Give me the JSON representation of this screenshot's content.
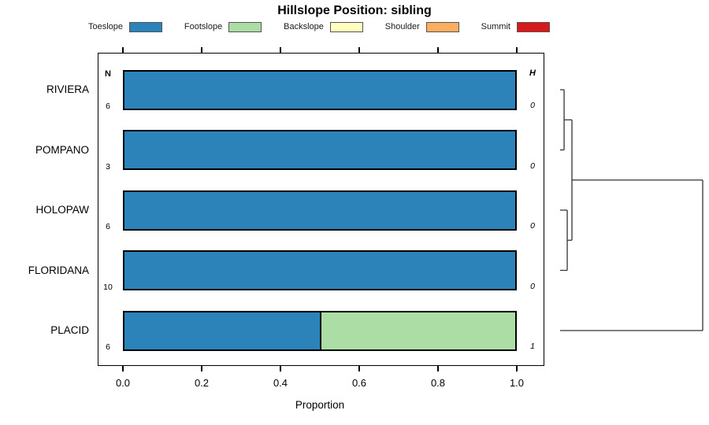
{
  "title": "Hillslope Position: sibling",
  "legend": {
    "entries": [
      {
        "label": "Toeslope",
        "color": "#2B83BA"
      },
      {
        "label": "Footslope",
        "color": "#ABDDA4"
      },
      {
        "label": "Backslope",
        "color": "#FFFFBF"
      },
      {
        "label": "Shoulder",
        "color": "#FDAE61"
      },
      {
        "label": "Summit",
        "color": "#D7191C"
      }
    ]
  },
  "columns": {
    "n_header": "N",
    "h_header": "H"
  },
  "x_axis": {
    "label": "Proportion",
    "tick_labels": [
      "0.0",
      "0.2",
      "0.4",
      "0.6",
      "0.8",
      "1.0"
    ],
    "min": 0.0,
    "max": 1.0
  },
  "chart_data": {
    "type": "bar",
    "subtype": "horizontal-stacked-proportion",
    "title": "Hillslope Position: sibling",
    "xlabel": "Proportion",
    "xlim": [
      0.0,
      1.0
    ],
    "xticks": [
      0.0,
      0.2,
      0.4,
      0.6,
      0.8,
      1.0
    ],
    "grid": false,
    "series": [
      "Toeslope",
      "Footslope",
      "Backslope",
      "Shoulder",
      "Summit"
    ],
    "categories": [
      "RIVIERA",
      "POMPANO",
      "HOLOPAW",
      "FLORIDANA",
      "PLACID"
    ],
    "rows": [
      {
        "name": "RIVIERA",
        "n": "6",
        "h": "0",
        "segments": [
          {
            "series": "Toeslope",
            "value": 1.0
          }
        ]
      },
      {
        "name": "POMPANO",
        "n": "3",
        "h": "0",
        "segments": [
          {
            "series": "Toeslope",
            "value": 1.0
          }
        ]
      },
      {
        "name": "HOLOPAW",
        "n": "6",
        "h": "0",
        "segments": [
          {
            "series": "Toeslope",
            "value": 1.0
          }
        ]
      },
      {
        "name": "FLORIDANA",
        "n": "10",
        "h": "0",
        "segments": [
          {
            "series": "Toeslope",
            "value": 1.0
          }
        ]
      },
      {
        "name": "PLACID",
        "n": "6",
        "h": "1",
        "segments": [
          {
            "series": "Toeslope",
            "value": 0.5
          },
          {
            "series": "Footslope",
            "value": 0.5
          }
        ]
      }
    ],
    "dendrogram": {
      "leaf_order": [
        "RIVIERA",
        "POMPANO",
        "HOLOPAW",
        "FLORIDANA",
        "PLACID"
      ],
      "merges": [
        {
          "id": "c1",
          "a": "RIVIERA",
          "b": "POMPANO",
          "height": 0.028
        },
        {
          "id": "c2",
          "a": "HOLOPAW",
          "b": "FLORIDANA",
          "height": 0.05
        },
        {
          "id": "c3",
          "a": "c1",
          "b": "c2",
          "height": 0.083
        },
        {
          "id": "c4",
          "a": "c3",
          "b": "PLACID",
          "height": 1.0
        }
      ],
      "line_color": "#333333"
    }
  }
}
